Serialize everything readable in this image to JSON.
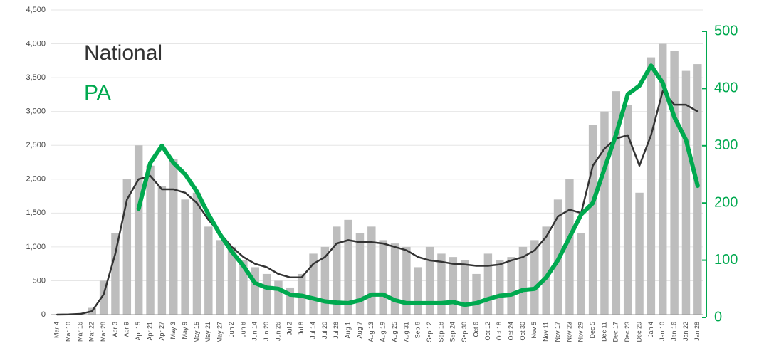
{
  "chart_data": {
    "type": "bar",
    "categories": [
      "Mar 4",
      "Mar 10",
      "Mar 16",
      "Mar 22",
      "Mar 28",
      "Apr 3",
      "Apr 9",
      "Apr 15",
      "Apr 21",
      "Apr 27",
      "May 3",
      "May 9",
      "May 15",
      "May 21",
      "May 27",
      "Jun 2",
      "Jun 8",
      "Jun 14",
      "Jun 20",
      "Jun 26",
      "Jul 2",
      "Jul 8",
      "Jul 14",
      "Jul 20",
      "Jul 26",
      "Aug 1",
      "Aug 7",
      "Aug 13",
      "Aug 19",
      "Aug 25",
      "Aug 31",
      "Sep 6",
      "Sep 12",
      "Sep 18",
      "Sep 24",
      "Sep 30",
      "Oct 6",
      "Oct 12",
      "Oct 18",
      "Oct 24",
      "Oct 30",
      "Nov 5",
      "Nov 11",
      "Nov 17",
      "Nov 23",
      "Nov 29",
      "Dec 5",
      "Dec 11",
      "Dec 17",
      "Dec 23",
      "Dec 29",
      "Jan 4",
      "Jan 10",
      "Jan 16",
      "Jan 22",
      "Jan 28"
    ],
    "bar_color": "#bdbdbd",
    "values": [
      0,
      5,
      20,
      100,
      500,
      1200,
      2000,
      2500,
      2200,
      1900,
      2300,
      1700,
      1800,
      1300,
      1100,
      1000,
      800,
      700,
      600,
      500,
      400,
      600,
      900,
      1000,
      1300,
      1400,
      1200,
      1300,
      1100,
      1050,
      1000,
      700,
      1000,
      900,
      850,
      800,
      600,
      900,
      800,
      850,
      1000,
      1100,
      1300,
      1700,
      2000,
      1200,
      2800,
      3000,
      3300,
      3100,
      1800,
      3800,
      4000,
      3900,
      3600,
      3700
    ],
    "series": [
      {
        "name": "National",
        "color": "#333333",
        "values": [
          0,
          2,
          10,
          50,
          300,
          900,
          1700,
          2000,
          2050,
          1850,
          1850,
          1800,
          1650,
          1400,
          1200,
          1000,
          850,
          750,
          700,
          600,
          550,
          550,
          750,
          850,
          1050,
          1100,
          1070,
          1070,
          1050,
          1000,
          950,
          850,
          800,
          780,
          750,
          740,
          720,
          720,
          740,
          800,
          850,
          950,
          1150,
          1450,
          1550,
          1500,
          2200,
          2450,
          2600,
          2650,
          2200,
          2650,
          3300,
          3100,
          3100,
          3000
        ]
      },
      {
        "name": "PA",
        "color": "#00a94f",
        "axis": "y2",
        "values": [
          null,
          null,
          null,
          null,
          null,
          null,
          null,
          190,
          270,
          300,
          270,
          250,
          220,
          180,
          145,
          115,
          90,
          60,
          52,
          50,
          40,
          38,
          33,
          28,
          26,
          25,
          30,
          40,
          40,
          30,
          25,
          25,
          25,
          25,
          27,
          22,
          25,
          32,
          38,
          40,
          48,
          50,
          70,
          100,
          140,
          180,
          200,
          260,
          320,
          390,
          405,
          440,
          410,
          350,
          310,
          230
        ]
      }
    ],
    "ylim": [
      0,
      4500
    ],
    "yticks": [
      0,
      500,
      {
        "value": 1000,
        "label": "1,000"
      },
      {
        "value": 1500,
        "label": "1,500"
      },
      {
        "value": 2000,
        "label": "2,000"
      },
      {
        "value": 2500,
        "label": "2,500"
      },
      {
        "value": 3000,
        "label": "3,000"
      },
      {
        "value": 3500,
        "label": "3,500"
      },
      {
        "value": 4000,
        "label": "4,000"
      },
      {
        "value": 4500,
        "label": "4,500"
      }
    ],
    "y2lim": [
      0,
      500
    ],
    "y2ticks": [
      0,
      100,
      200,
      300,
      400,
      500
    ],
    "y2_color": "#00a94f",
    "grid": true
  }
}
